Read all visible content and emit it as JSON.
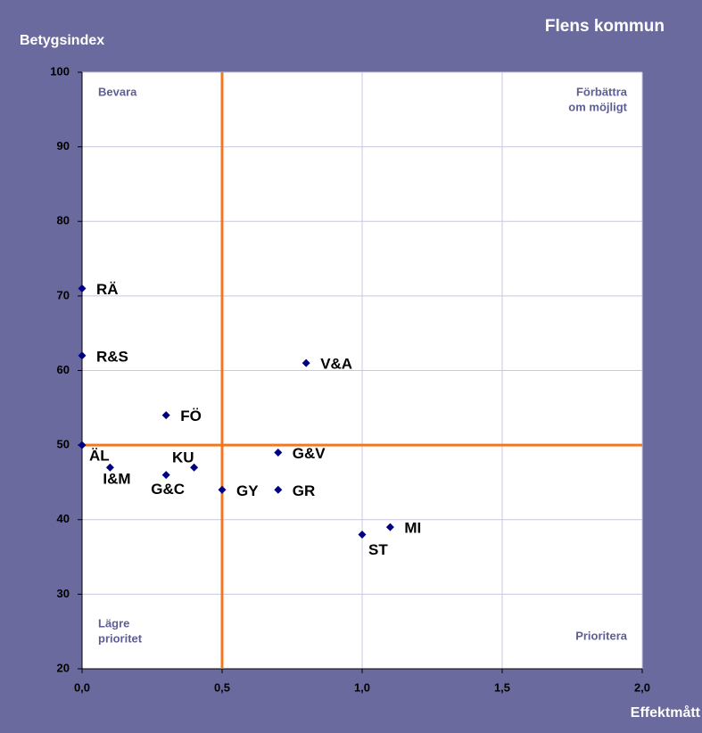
{
  "chart_data": {
    "type": "scatter",
    "title": "Flens kommun",
    "y_label": "Betygsindex",
    "x_label": "Effektmått",
    "color": "#000080",
    "points": [
      "RÄ",
      "R&S",
      "ÄL",
      "I&M",
      "FÖ",
      "G&C",
      "KU",
      "GY",
      "G&V",
      "GR",
      "V&A",
      "ST",
      "MI"
    ],
    "x": [
      0,
      0,
      0,
      0.1,
      0.3,
      0.3,
      0.4,
      0.5,
      0.7,
      0.7,
      0.8,
      1.0,
      1.1
    ],
    "y": [
      71,
      62,
      50,
      47,
      54,
      46,
      47,
      44,
      49,
      44,
      61,
      38,
      39
    ],
    "xlim": [
      0,
      2.0
    ],
    "ylim": [
      20,
      100
    ],
    "xticks": [
      {
        "value": 0,
        "label": "0,0"
      },
      {
        "value": 0.5,
        "label": "0,5"
      },
      {
        "value": 1.0,
        "label": "1,0"
      },
      {
        "value": 1.5,
        "label": "1,5"
      },
      {
        "value": 2.0,
        "label": "2,0"
      }
    ],
    "yticks": [
      20,
      30,
      40,
      50,
      60,
      70,
      80,
      90,
      100
    ],
    "grid": true,
    "reference_lines": {
      "x": 0.5,
      "y": 50,
      "color": "#f07820"
    },
    "quadrants": {
      "top_left": [
        "Bevara"
      ],
      "top_right": [
        "Förbättra",
        "om möjligt"
      ],
      "bottom_left": [
        "Lägre",
        "prioritet"
      ],
      "bottom_right": [
        "Prioritera"
      ]
    }
  }
}
